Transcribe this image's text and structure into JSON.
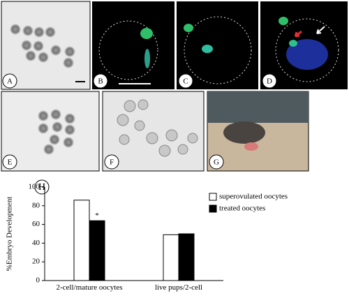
{
  "panels": [
    {
      "label": "A"
    },
    {
      "label": "B"
    },
    {
      "label": "C"
    },
    {
      "label": "D"
    },
    {
      "label": "E"
    },
    {
      "label": "F"
    },
    {
      "label": "G"
    }
  ],
  "chart_data": {
    "type": "bar",
    "panel_label": "H",
    "ylabel": "%Embryo Development",
    "categories": [
      "2-cell/mature oocytes",
      "live pups/2-cell"
    ],
    "series": [
      {
        "name": "superovulated oocytes",
        "color": "#ffffff",
        "values": [
          86,
          49
        ]
      },
      {
        "name": "treated oocytes",
        "color": "#000000",
        "values": [
          64,
          50
        ]
      }
    ],
    "annotations": [
      {
        "text": "*",
        "series": 1,
        "category": 0
      }
    ],
    "ylim": [
      0,
      100
    ],
    "yticks": [
      0,
      20,
      40,
      60,
      80,
      100
    ],
    "grid": false,
    "legend": "top-right"
  }
}
